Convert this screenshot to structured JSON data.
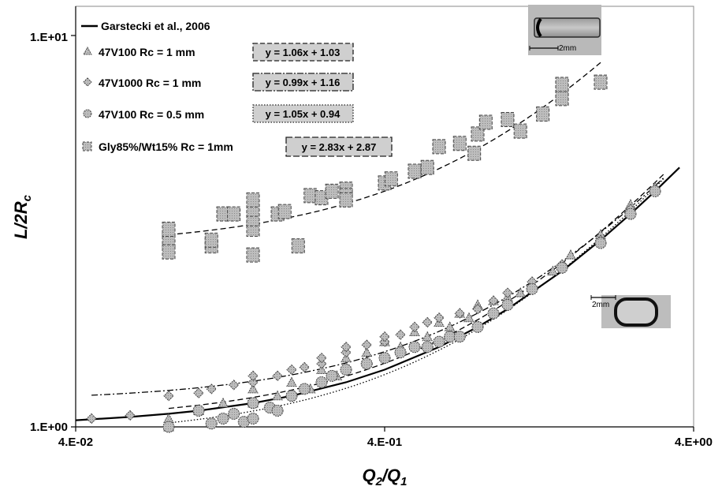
{
  "chart_data": {
    "type": "scatter",
    "xscale": "log",
    "yscale": "log",
    "xlim": [
      0.04,
      4
    ],
    "ylim": [
      1,
      10
    ],
    "xticks": [
      "4.E-02",
      "4.E-01",
      "4.E+00"
    ],
    "yticks": [
      "1.E+00",
      "1.E+01"
    ],
    "xlabel_main": "Q",
    "xlabel_sub1": "2",
    "xlabel_mid": "/Q",
    "xlabel_sub2": "1",
    "ylabel_main": "L/2R",
    "ylabel_sub": "c",
    "grid": false,
    "legend_position": "top-left",
    "series": [
      {
        "name": "Garstecki et al., 2006",
        "kind": "line",
        "x": [
          0.04,
          0.06,
          0.08,
          0.1,
          0.15,
          0.2,
          0.3,
          0.4,
          0.6,
          0.8,
          1.0,
          1.5,
          2.0,
          2.5,
          3.0,
          3.6
        ],
        "y": [
          1.04,
          1.06,
          1.08,
          1.1,
          1.15,
          1.2,
          1.3,
          1.4,
          1.6,
          1.8,
          2.0,
          2.5,
          3.0,
          3.5,
          4.0,
          4.6
        ]
      },
      {
        "name": "47V100 Rc = 1 mm",
        "marker": "triangle",
        "equation": "y = 1.06x + 1.03",
        "fit_line_style": "dashed",
        "x": [
          0.08,
          0.08,
          0.1,
          0.12,
          0.15,
          0.15,
          0.18,
          0.2,
          0.23,
          0.25,
          0.28,
          0.3,
          0.35,
          0.4,
          0.45,
          0.5,
          0.55,
          0.6,
          0.65,
          0.7,
          0.75,
          0.8,
          0.9,
          1.0,
          1.1,
          1.2,
          1.4,
          1.6,
          2.0,
          2.5,
          3.0
        ],
        "y": [
          1.0,
          1.05,
          1.1,
          1.15,
          1.25,
          1.15,
          1.2,
          1.3,
          1.25,
          1.4,
          1.35,
          1.5,
          1.55,
          1.65,
          1.6,
          1.75,
          1.7,
          1.85,
          1.8,
          1.95,
          1.9,
          2.05,
          2.1,
          2.15,
          2.2,
          2.3,
          2.5,
          2.75,
          3.1,
          3.7,
          4.1
        ]
      },
      {
        "name": "47V1000 Rc = 1 mm",
        "marker": "diamond",
        "equation": "y = 0.99x + 1.16",
        "fit_line_style": "dash-dot",
        "x": [
          0.045,
          0.06,
          0.08,
          0.1,
          0.11,
          0.13,
          0.15,
          0.15,
          0.18,
          0.2,
          0.22,
          0.25,
          0.25,
          0.3,
          0.3,
          0.35,
          0.4,
          0.4,
          0.45,
          0.5,
          0.55,
          0.6,
          0.7,
          0.8,
          0.9,
          1.0,
          1.2,
          1.5,
          2.0,
          2.5,
          3.0
        ],
        "y": [
          1.05,
          1.07,
          1.2,
          1.22,
          1.25,
          1.28,
          1.3,
          1.35,
          1.35,
          1.4,
          1.42,
          1.45,
          1.5,
          1.55,
          1.6,
          1.62,
          1.65,
          1.7,
          1.72,
          1.8,
          1.85,
          1.9,
          1.95,
          2.0,
          2.1,
          2.2,
          2.35,
          2.6,
          3.0,
          3.6,
          4.0
        ]
      },
      {
        "name": "47V100 Rc = 0.5 mm",
        "marker": "circle",
        "equation": "y = 1.05x + 0.94",
        "fit_line_style": "dotted",
        "x": [
          0.08,
          0.1,
          0.11,
          0.12,
          0.13,
          0.14,
          0.15,
          0.15,
          0.17,
          0.18,
          0.2,
          0.22,
          0.25,
          0.27,
          0.3,
          0.35,
          0.4,
          0.45,
          0.5,
          0.55,
          0.6,
          0.65,
          0.7,
          0.8,
          0.9,
          1.0,
          1.2,
          1.5,
          2.0,
          2.5,
          3.0
        ],
        "y": [
          1.0,
          1.1,
          1.02,
          1.05,
          1.08,
          1.03,
          1.05,
          1.15,
          1.12,
          1.1,
          1.2,
          1.25,
          1.3,
          1.35,
          1.4,
          1.45,
          1.5,
          1.55,
          1.6,
          1.6,
          1.65,
          1.7,
          1.7,
          1.8,
          1.95,
          2.05,
          2.25,
          2.55,
          2.95,
          3.5,
          4.0
        ]
      },
      {
        "name": "Gly85%/Wt15% Rc = 1mm",
        "marker": "square",
        "equation": "y = 2.83x + 2.87",
        "fit_line_style": "dashed",
        "x": [
          0.08,
          0.08,
          0.08,
          0.11,
          0.11,
          0.12,
          0.13,
          0.15,
          0.15,
          0.15,
          0.15,
          0.15,
          0.18,
          0.19,
          0.21,
          0.23,
          0.25,
          0.27,
          0.3,
          0.3,
          0.3,
          0.4,
          0.42,
          0.5,
          0.55,
          0.6,
          0.7,
          0.78,
          0.8,
          0.85,
          1.0,
          1.1,
          1.3,
          1.5,
          1.5,
          2.0
        ],
        "y": [
          3.0,
          3.2,
          2.8,
          2.9,
          3.0,
          3.5,
          3.5,
          3.2,
          3.4,
          3.6,
          3.8,
          2.75,
          3.5,
          3.55,
          2.9,
          3.9,
          3.85,
          4.0,
          4.05,
          3.9,
          3.8,
          4.2,
          4.3,
          4.5,
          4.6,
          5.2,
          5.3,
          5.0,
          5.6,
          6.0,
          6.1,
          5.7,
          6.3,
          6.9,
          7.5,
          7.6
        ]
      }
    ],
    "insets": [
      {
        "name": "elongated-plug",
        "scale_label": "2mm"
      },
      {
        "name": "short-plug",
        "scale_label": "2mm"
      }
    ]
  }
}
